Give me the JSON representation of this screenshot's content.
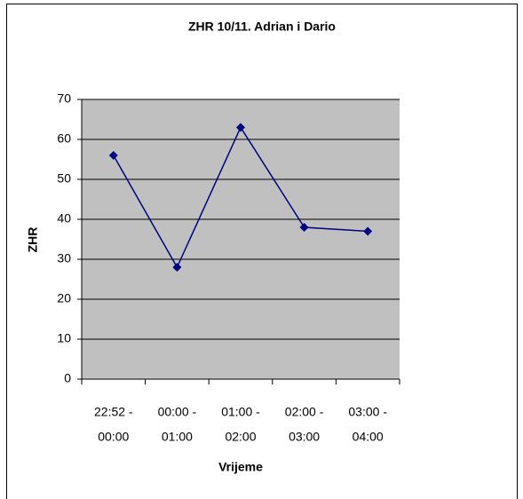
{
  "chart_data": {
    "type": "line",
    "title": "ZHR 10/11. Adrian i Dario",
    "categories": [
      [
        "22:52 -",
        "00:00"
      ],
      [
        "00:00 -",
        "01:00"
      ],
      [
        "01:00 -",
        "02:00"
      ],
      [
        "02:00 -",
        "03:00"
      ],
      [
        "03:00 -",
        "04:00"
      ]
    ],
    "series": [
      {
        "name": "ZHR",
        "color": "#000080",
        "values": [
          56,
          28,
          63,
          38,
          37
        ]
      }
    ],
    "ylim": [
      0,
      70
    ],
    "yticks": [
      0,
      10,
      20,
      30,
      40,
      50,
      60,
      70
    ],
    "grid": true,
    "xlabel": "Vrijeme",
    "ylabel": "ZHR"
  }
}
